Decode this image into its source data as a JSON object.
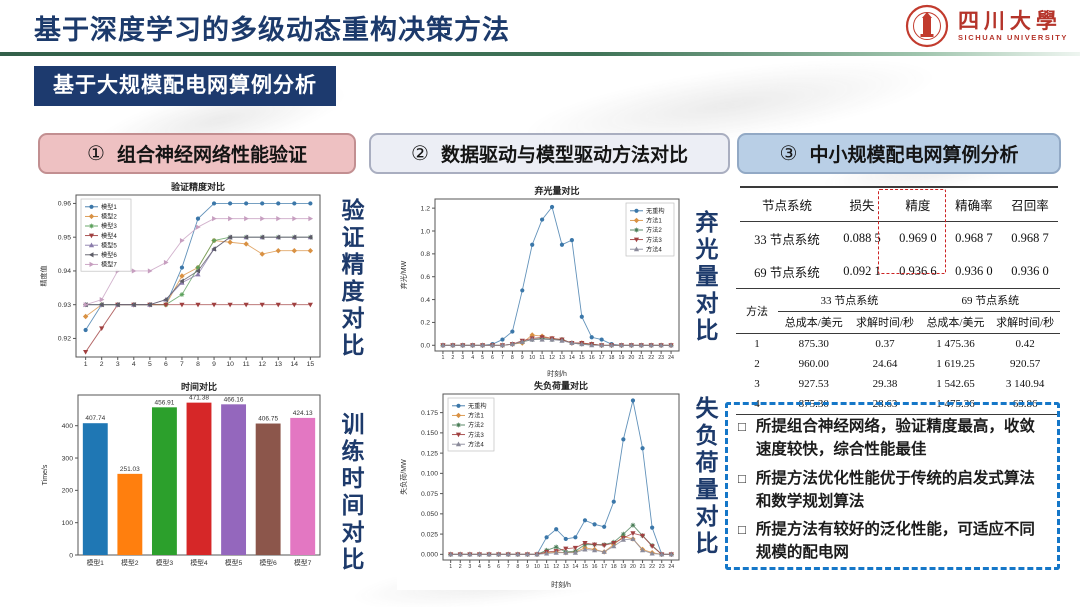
{
  "header": {
    "title": "基于深度学习的多级动态重构决策方法",
    "logo_cn": "四川大學",
    "logo_en": "SICHUAN UNIVERSITY",
    "badge": "基于大规模配电网算例分析"
  },
  "sections": [
    {
      "num": "①",
      "label": "组合神经网络性能验证"
    },
    {
      "num": "②",
      "label": "数据驱动与模型驱动方法对比"
    },
    {
      "num": "③",
      "label": "中小规模配电网算例分析"
    }
  ],
  "side_labels": {
    "col1_top": "验证精度对比",
    "col1_bottom": "训练时间对比",
    "col2_top": "弃光量对比",
    "col2_bottom": "失负荷量对比"
  },
  "chart_data": [
    {
      "id": "acc",
      "type": "line",
      "title": "验证精度对比",
      "ylabel": "精度值",
      "xlabel": "",
      "x": [
        1,
        2,
        3,
        4,
        5,
        6,
        7,
        8,
        9,
        10,
        11,
        12,
        13,
        14,
        15
      ],
      "ylim": [
        0.9145,
        0.9625
      ],
      "yticks": [
        "0.92",
        "0.93",
        "0.94",
        "0.95",
        "0.96"
      ],
      "legend_pos": "tl",
      "grid": false,
      "series": [
        {
          "name": "模型1",
          "color": "#3b77a9",
          "marker": "circle",
          "values": [
            0.9225,
            0.93,
            0.93,
            0.93,
            0.93,
            0.93,
            0.941,
            0.9555,
            0.96,
            0.96,
            0.96,
            0.96,
            0.96,
            0.96,
            0.96
          ]
        },
        {
          "name": "模型2",
          "color": "#d99143",
          "marker": "diamond",
          "values": [
            0.9265,
            0.93,
            0.93,
            0.93,
            0.93,
            0.93,
            0.9385,
            0.941,
            0.949,
            0.9485,
            0.948,
            0.945,
            0.946,
            0.946,
            0.946
          ]
        },
        {
          "name": "模型3",
          "color": "#5ba05b",
          "marker": "star",
          "values": [
            0.93,
            0.93,
            0.93,
            0.93,
            0.93,
            0.93,
            0.933,
            0.941,
            0.949,
            0.95,
            0.95,
            0.95,
            0.95,
            0.95,
            0.95
          ]
        },
        {
          "name": "模型4",
          "color": "#a04040",
          "marker": "tri-down",
          "values": [
            0.916,
            0.923,
            0.93,
            0.93,
            0.93,
            0.93,
            0.93,
            0.93,
            0.93,
            0.93,
            0.93,
            0.93,
            0.93,
            0.93,
            0.93
          ]
        },
        {
          "name": "模型5",
          "color": "#8a7cab",
          "marker": "tri-up",
          "values": [
            0.93,
            0.93,
            0.93,
            0.93,
            0.93,
            0.9315,
            0.9365,
            0.939,
            0.9465,
            0.95,
            0.95,
            0.95,
            0.95,
            0.95,
            0.95
          ]
        },
        {
          "name": "模型6",
          "color": "#5c5c66",
          "marker": "tri-left",
          "values": [
            0.93,
            0.93,
            0.93,
            0.93,
            0.93,
            0.9315,
            0.937,
            0.94,
            0.9465,
            0.95,
            0.95,
            0.95,
            0.95,
            0.95,
            0.95
          ]
        },
        {
          "name": "模型7",
          "color": "#c79fc0",
          "marker": "tri-right",
          "values": [
            0.93,
            0.9315,
            0.94,
            0.94,
            0.94,
            0.9425,
            0.949,
            0.953,
            0.9555,
            0.9555,
            0.9555,
            0.9555,
            0.9555,
            0.9555,
            0.9555
          ]
        }
      ]
    },
    {
      "id": "time",
      "type": "bar",
      "title": "时间对比",
      "ylabel": "Time/s",
      "xlabel": "",
      "categories": [
        "模型1",
        "模型2",
        "模型3",
        "模型4",
        "模型5",
        "模型6",
        "模型7"
      ],
      "values": [
        407.74,
        251.03,
        456.91,
        471.38,
        466.16,
        406.75,
        424.13
      ],
      "labels": [
        "407.74",
        "251.03",
        "456.91",
        "471.38",
        "466.16",
        "406.75",
        "424.13"
      ],
      "colors": [
        "#1f77b4",
        "#ff7f0e",
        "#2ca02c",
        "#d62728",
        "#9467bd",
        "#8c564b",
        "#e377c2"
      ],
      "ylim": [
        0,
        495
      ],
      "yticks": [
        "0",
        "100",
        "200",
        "300",
        "400"
      ]
    },
    {
      "id": "curtail",
      "type": "line",
      "title": "弃光量对比",
      "ylabel": "弃光/MW",
      "xlabel": "时刻/h",
      "x": [
        1,
        2,
        3,
        4,
        5,
        6,
        7,
        8,
        9,
        10,
        11,
        12,
        13,
        14,
        15,
        16,
        17,
        18,
        19,
        20,
        21,
        22,
        23,
        24
      ],
      "ylim": [
        -0.05,
        1.28
      ],
      "yticks": [
        "0.0",
        "0.2",
        "0.4",
        "0.6",
        "0.8",
        "1.0",
        "1.2"
      ],
      "legend_pos": "tr",
      "grid": false,
      "series": [
        {
          "name": "无重构",
          "color": "#3b77a9",
          "marker": "circle",
          "values": [
            0,
            0,
            0,
            0,
            0,
            0.01,
            0.05,
            0.12,
            0.48,
            0.88,
            1.1,
            1.21,
            0.88,
            0.92,
            0.25,
            0.07,
            0.05,
            0.01,
            0,
            0,
            0,
            0,
            0,
            0
          ]
        },
        {
          "name": "方法1",
          "color": "#d99143",
          "marker": "diamond",
          "values": [
            0,
            0,
            0,
            0,
            0,
            0,
            0,
            0.01,
            0.02,
            0.09,
            0.08,
            0.06,
            0.05,
            0.02,
            0.02,
            0.01,
            0,
            0,
            0,
            0,
            0,
            0,
            0,
            0
          ]
        },
        {
          "name": "方法2",
          "color": "#4a7d57",
          "marker": "star",
          "values": [
            0,
            0,
            0,
            0,
            0,
            0,
            0,
            0.01,
            0.03,
            0.05,
            0.06,
            0.05,
            0.05,
            0.02,
            0.01,
            0.01,
            0,
            0,
            0,
            0,
            0,
            0,
            0,
            0
          ]
        },
        {
          "name": "方法3",
          "color": "#a04040",
          "marker": "tri-down",
          "values": [
            0,
            0,
            0,
            0,
            0,
            0,
            0,
            0.01,
            0.04,
            0.06,
            0.07,
            0.06,
            0.05,
            0.02,
            0.02,
            0.01,
            0,
            0,
            0,
            0,
            0,
            0,
            0,
            0
          ]
        },
        {
          "name": "方法4",
          "color": "#8a8a9a",
          "marker": "tri-up",
          "values": [
            0,
            0,
            0,
            0,
            0,
            0,
            0,
            0.01,
            0.03,
            0.05,
            0.05,
            0.05,
            0.04,
            0.02,
            0.01,
            0,
            0,
            0,
            0,
            0,
            0,
            0,
            0,
            0
          ]
        }
      ]
    },
    {
      "id": "shed",
      "type": "line",
      "title": "失负荷量对比",
      "ylabel": "失负荷/MW",
      "xlabel": "时刻/h",
      "x": [
        1,
        2,
        3,
        4,
        5,
        6,
        7,
        8,
        9,
        10,
        11,
        12,
        13,
        14,
        15,
        16,
        17,
        18,
        19,
        20,
        21,
        22,
        23,
        24
      ],
      "ylim": [
        -0.007,
        0.198
      ],
      "yticks": [
        "0.000",
        "0.025",
        "0.050",
        "0.075",
        "0.100",
        "0.125",
        "0.150",
        "0.175"
      ],
      "legend_pos": "tl",
      "grid": false,
      "series": [
        {
          "name": "无重构",
          "color": "#3b77a9",
          "marker": "circle",
          "values": [
            0,
            0,
            0,
            0,
            0,
            0,
            0,
            0,
            0,
            0,
            0.021,
            0.031,
            0.019,
            0.021,
            0.042,
            0.037,
            0.034,
            0.065,
            0.142,
            0.19,
            0.131,
            0.033,
            0,
            0
          ]
        },
        {
          "name": "方法1",
          "color": "#d99143",
          "marker": "diamond",
          "values": [
            0,
            0,
            0,
            0,
            0,
            0,
            0,
            0,
            0,
            0,
            0.002,
            0.003,
            0.002,
            0.003,
            0.008,
            0.006,
            0.003,
            0.012,
            0.022,
            0.019,
            0.006,
            0.002,
            0,
            0
          ]
        },
        {
          "name": "方法2",
          "color": "#4a7d57",
          "marker": "star",
          "values": [
            0,
            0,
            0,
            0,
            0,
            0,
            0,
            0,
            0,
            0,
            0.005,
            0.009,
            0.003,
            0.004,
            0.012,
            0.012,
            0.012,
            0.015,
            0.025,
            0.036,
            0.023,
            0.011,
            0,
            0
          ]
        },
        {
          "name": "方法3",
          "color": "#a04040",
          "marker": "tri-down",
          "values": [
            0,
            0,
            0,
            0,
            0,
            0,
            0,
            0,
            0,
            0,
            0.003,
            0.004,
            0.007,
            0.008,
            0.014,
            0.012,
            0.011,
            0.014,
            0.02,
            0.026,
            0.023,
            0.01,
            0,
            0
          ]
        },
        {
          "name": "方法4",
          "color": "#8a8a9a",
          "marker": "tri-up",
          "values": [
            0,
            0,
            0,
            0,
            0,
            0,
            0,
            0,
            0,
            0,
            0.001,
            0.002,
            0.002,
            0.002,
            0.006,
            0.005,
            0.003,
            0.01,
            0.018,
            0.019,
            0.005,
            0.001,
            0,
            0
          ]
        }
      ]
    }
  ],
  "tables": {
    "metrics": {
      "headers": [
        "节点系统",
        "损失",
        "精度",
        "精确率",
        "召回率"
      ],
      "rows": [
        [
          "33 节点系统",
          "0.088 5",
          "0.969 0",
          "0.968 7",
          "0.968 7"
        ],
        [
          "69 节点系统",
          "0.092 1",
          "0.936 6",
          "0.936 0",
          "0.936 0"
        ]
      ],
      "highlight_column": "精度",
      "highlight_color": "#cc2222"
    },
    "cost": {
      "col0": "方法",
      "groups": [
        "33 节点系统",
        "69 节点系统"
      ],
      "subheaders": [
        "总成本/美元",
        "求解时间/秒",
        "总成本/美元",
        "求解时间/秒"
      ],
      "rows": [
        [
          "1",
          "875.30",
          "0.37",
          "1 475.36",
          "0.42"
        ],
        [
          "2",
          "960.00",
          "24.64",
          "1 619.25",
          "920.57"
        ],
        [
          "3",
          "927.53",
          "29.38",
          "1 542.65",
          "3 140.94"
        ],
        [
          "4",
          "875.30",
          "28.63",
          "1 475.36",
          "63.86"
        ]
      ]
    }
  },
  "notes": {
    "bullet": "□",
    "border_color": "#1577c8",
    "items": [
      "所提组合神经网络，验证精度最高，收敛速度较快，综合性能最佳",
      "所提方法优化性能优于传统的启发式算法和数学规划算法",
      "所提方法有较好的泛化性能，可适应不同规模的配电网"
    ]
  }
}
